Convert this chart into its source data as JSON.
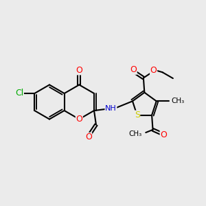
{
  "background_color": "#ebebeb",
  "atom_colors": {
    "O": "#ff0000",
    "N": "#0000cd",
    "S": "#cccc00",
    "Cl": "#00aa00",
    "C": "#000000",
    "H": "#777777"
  },
  "bond_color": "#000000",
  "bond_width": 1.5,
  "fig_w": 3.0,
  "fig_h": 3.0,
  "dpi": 100,
  "xlim": [
    0,
    10
  ],
  "ylim": [
    0.5,
    10.5
  ]
}
